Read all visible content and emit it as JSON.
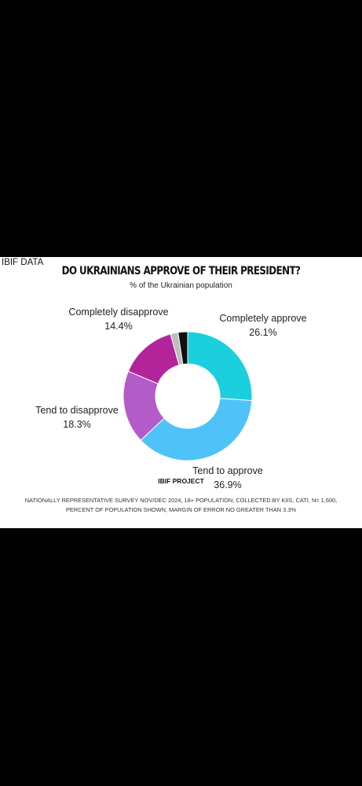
{
  "brand": "IBIF DATA",
  "source_label": "IBIF PROJECT",
  "footnote": [
    "NATIONALLY REPRESENTATIVE SURVEY NOV/DEC 2024, 18+ POPULATION, COLLECTED BY KIIS, CATI, N= 1,600,",
    "PERCENT OF POPULATION SHOWN, MARGIN OF ERROR NO GREATER THAN 3.3%"
  ],
  "chart_data": {
    "type": "pie",
    "title": "DO UKRAINIANS APPROVE OF THEIR PRESIDENT?",
    "subtitle": "% of the Ukrainian population",
    "donut": true,
    "slices": [
      {
        "name": "Completely approve",
        "value": 26.1,
        "label": "26.1%",
        "color": "#1ccfdc"
      },
      {
        "name": "Tend to approve",
        "value": 36.9,
        "label": "36.9%",
        "color": "#4fc3f7"
      },
      {
        "name": "Tend to disapprove",
        "value": 18.3,
        "label": "18.3%",
        "color": "#b35cc9"
      },
      {
        "name": "Completely disapprove",
        "value": 14.4,
        "label": "14.4%",
        "color": "#b3249a"
      },
      {
        "name": "",
        "value": 1.9,
        "label": "",
        "color": "#bdbdbd"
      },
      {
        "name": "",
        "value": 2.4,
        "label": "",
        "color": "#111111"
      }
    ]
  }
}
